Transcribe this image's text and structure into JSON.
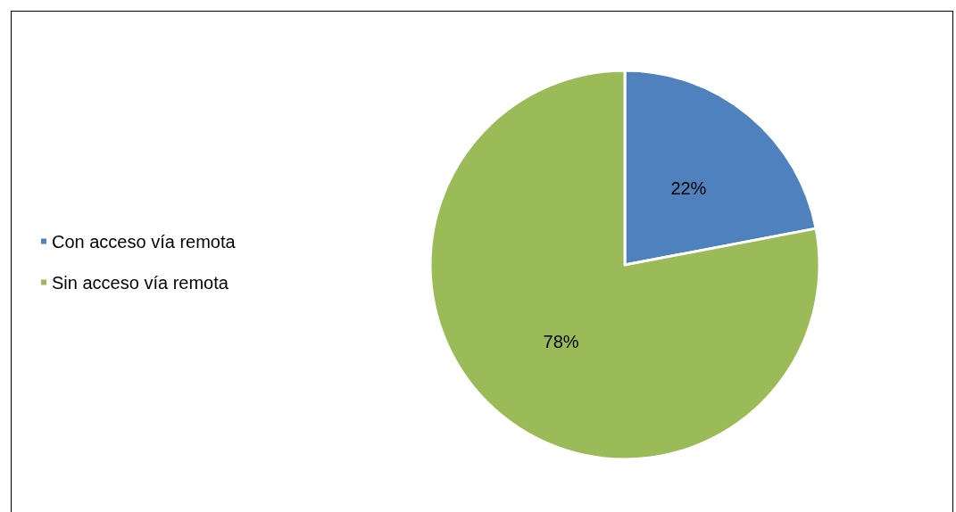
{
  "chart_data": {
    "type": "pie",
    "categories": [
      "Con acceso vía remota",
      "Sin acceso vía remota"
    ],
    "values": [
      22,
      78
    ],
    "colors": [
      "#4f81bd",
      "#9bbb59"
    ],
    "value_labels": [
      "22%",
      "78%"
    ],
    "legend": "left"
  }
}
